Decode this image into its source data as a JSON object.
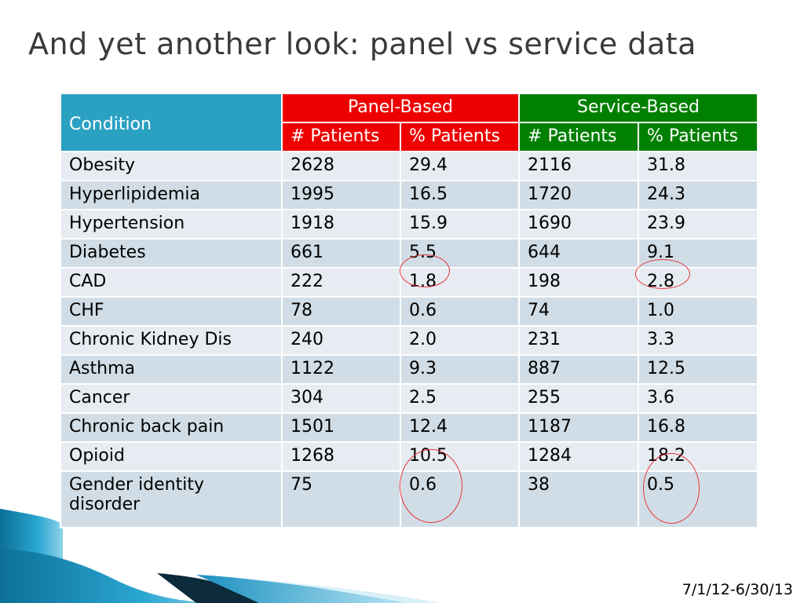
{
  "slide": {
    "title": "And yet another look: panel vs service data",
    "footer_date": "7/1/12-6/30/13"
  },
  "table": {
    "condition_header": "Condition",
    "group_headers": {
      "panel": "Panel-Based",
      "service": "Service-Based"
    },
    "sub_headers": [
      "# Patients",
      "% Patients",
      "# Patients",
      "% Patients"
    ],
    "rows": [
      [
        "Obesity",
        "2628",
        "29.4",
        "2116",
        "31.8"
      ],
      [
        "Hyperlipidemia",
        "1995",
        "16.5",
        "1720",
        "24.3"
      ],
      [
        "Hypertension",
        "1918",
        "15.9",
        "1690",
        "23.9"
      ],
      [
        "Diabetes",
        "661",
        "5.5",
        "644",
        "9.1"
      ],
      [
        "CAD",
        "222",
        "1.8",
        "198",
        "2.8"
      ],
      [
        "CHF",
        "78",
        "0.6",
        "74",
        "1.0"
      ],
      [
        "Chronic Kidney Dis",
        "240",
        "2.0",
        "231",
        "3.3"
      ],
      [
        "Asthma",
        "1122",
        "9.3",
        "887",
        "12.5"
      ],
      [
        "Cancer",
        "304",
        "2.5",
        "255",
        "3.6"
      ],
      [
        "Chronic back pain",
        "1501",
        "12.4",
        "1187",
        "16.8"
      ],
      [
        "Opioid",
        "1268",
        "10.5",
        "1284",
        "18.2"
      ],
      [
        "Gender identity disorder",
        "75",
        "0.6",
        "38",
        "0.5"
      ]
    ]
  },
  "colors": {
    "condition_header": "#2ba1c2",
    "panel_header": "#ee0000",
    "service_header": "#008000",
    "circle_annotation": "#e5343a"
  }
}
